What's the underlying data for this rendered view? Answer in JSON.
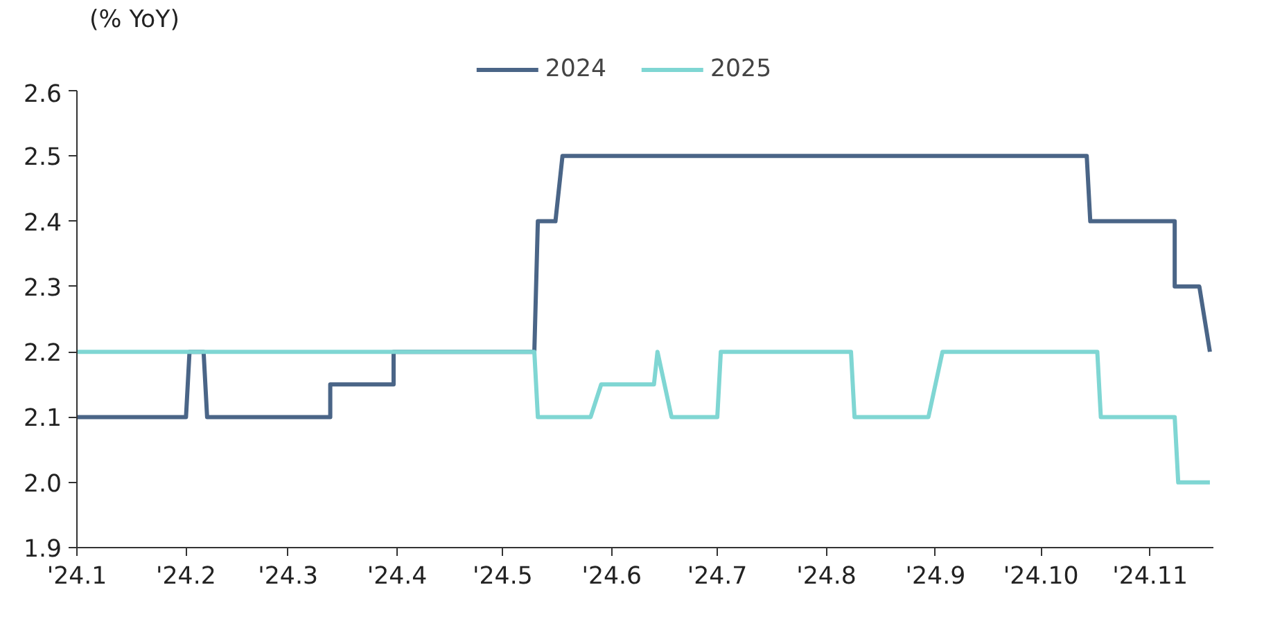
{
  "chart_data": {
    "type": "line",
    "ylabel": "(% YoY)",
    "legend": "top",
    "grid": false,
    "line_style": "solid",
    "marker": "none",
    "xlim": [
      "2024-01-01",
      "2024-11-19"
    ],
    "xticks": [
      {
        "value": "2024-01-01",
        "label": "'24.1"
      },
      {
        "value": "2024-02-01",
        "label": "'24.2"
      },
      {
        "value": "2024-03-01",
        "label": "'24.3"
      },
      {
        "value": "2024-04-01",
        "label": "'24.4"
      },
      {
        "value": "2024-05-01",
        "label": "'24.5"
      },
      {
        "value": "2024-06-01",
        "label": "'24.6"
      },
      {
        "value": "2024-07-01",
        "label": "'24.7"
      },
      {
        "value": "2024-08-01",
        "label": "'24.8"
      },
      {
        "value": "2024-09-01",
        "label": "'24.9"
      },
      {
        "value": "2024-10-01",
        "label": "'24.10"
      },
      {
        "value": "2024-11-01",
        "label": "'24.11"
      }
    ],
    "ylim": [
      1.9,
      2.6
    ],
    "yticks": [
      1.9,
      {
        "value": 2.0,
        "label": "2.0"
      },
      2.1,
      2.2,
      2.3,
      2.4,
      2.5,
      2.6
    ],
    "series": [
      {
        "name": "2024",
        "color": "#4a6587",
        "x": [
          "2024-01-01",
          "2024-02-01",
          "2024-02-02",
          "2024-02-06",
          "2024-02-07",
          "2024-03-13",
          "2024-03-13",
          "2024-03-31",
          "2024-03-31",
          "2024-05-10",
          "2024-05-11",
          "2024-05-16",
          "2024-05-17",
          "2024-05-17",
          "2024-05-18",
          "2024-10-14",
          "2024-10-15",
          "2024-11-08",
          "2024-11-08",
          "2024-11-15",
          "2024-11-18"
        ],
        "values": [
          2.1,
          2.1,
          2.2,
          2.2,
          2.1,
          2.1,
          2.15,
          2.15,
          2.2,
          2.2,
          2.4,
          2.4,
          2.45,
          2.45,
          2.5,
          2.5,
          2.4,
          2.4,
          2.3,
          2.3,
          2.2
        ]
      },
      {
        "name": "2025",
        "color": "#7fd6d3",
        "x": [
          "2024-01-01",
          "2024-05-10",
          "2024-05-11",
          "2024-05-26",
          "2024-05-29",
          "2024-06-13",
          "2024-06-14",
          "2024-06-18",
          "2024-07-01",
          "2024-07-02",
          "2024-08-08",
          "2024-08-09",
          "2024-08-30",
          "2024-09-03",
          "2024-10-17",
          "2024-10-18",
          "2024-11-08",
          "2024-11-09",
          "2024-11-18"
        ],
        "values": [
          2.2,
          2.2,
          2.1,
          2.1,
          2.15,
          2.15,
          2.2,
          2.1,
          2.1,
          2.2,
          2.2,
          2.1,
          2.1,
          2.2,
          2.2,
          2.1,
          2.1,
          2.0,
          2.0
        ]
      }
    ]
  }
}
